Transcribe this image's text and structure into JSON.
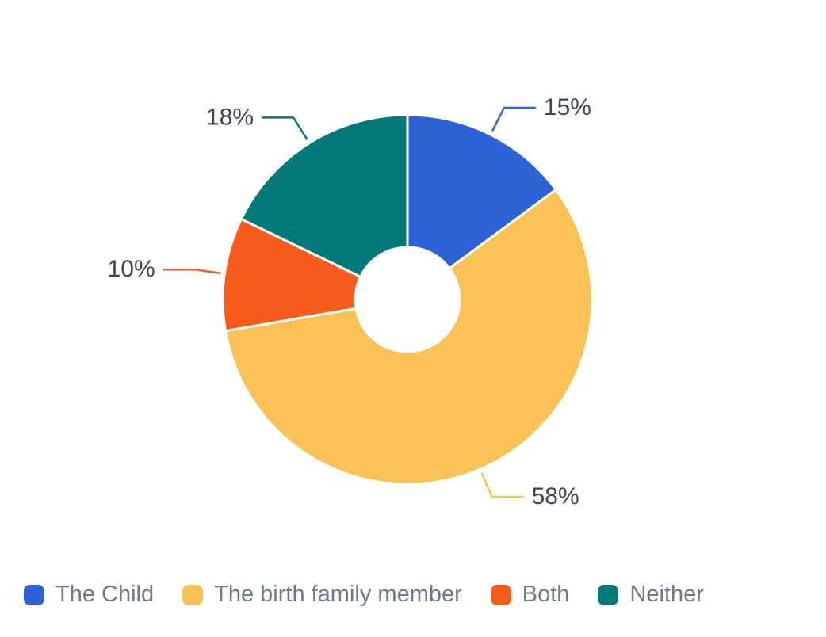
{
  "chart_data": {
    "type": "pie",
    "subtype": "donut",
    "title": "",
    "categories": [
      "The Child",
      "The birth family member",
      "Both",
      "Neither"
    ],
    "values": [
      15,
      58,
      10,
      18
    ],
    "data_labels": [
      "15%",
      "58%",
      "10%",
      "18%"
    ],
    "colors": [
      "#2E63D5",
      "#F9C156",
      "#F85C1C",
      "#04797A"
    ],
    "legend_position": "bottom",
    "rotation_start": "top",
    "direction": "clockwise",
    "donut_hole_ratio": 0.283,
    "slice_gap_color": "#FFFFFF",
    "label_text_color": "#3E4853",
    "legend_text_color": "#6C7A89",
    "background_color": "#FFFFFF"
  }
}
